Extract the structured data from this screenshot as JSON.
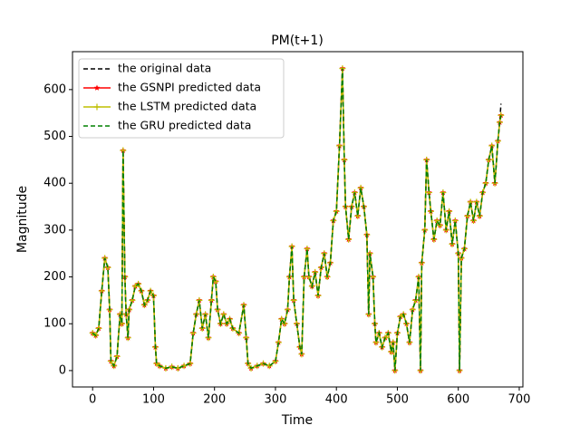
{
  "chart_data": {
    "type": "line",
    "title": "PM(t+1)",
    "x_label": "Time",
    "y_label": "Magnitude",
    "x": [
      0,
      5,
      10,
      15,
      20,
      25,
      28,
      30,
      35,
      40,
      45,
      48,
      50,
      53,
      55,
      58,
      60,
      65,
      70,
      75,
      80,
      85,
      90,
      95,
      100,
      103,
      105,
      110,
      120,
      130,
      140,
      150,
      160,
      165,
      170,
      175,
      180,
      185,
      190,
      195,
      198,
      202,
      205,
      210,
      215,
      220,
      225,
      230,
      240,
      248,
      252,
      255,
      260,
      270,
      280,
      290,
      300,
      305,
      310,
      315,
      320,
      323,
      327,
      330,
      335,
      340,
      343,
      347,
      352,
      355,
      360,
      365,
      370,
      375,
      380,
      385,
      390,
      395,
      400,
      405,
      410,
      413,
      415,
      420,
      425,
      430,
      435,
      440,
      445,
      450,
      453,
      455,
      460,
      463,
      465,
      470,
      475,
      480,
      485,
      490,
      493,
      496,
      500,
      505,
      510,
      515,
      520,
      525,
      530,
      535,
      538,
      540,
      545,
      548,
      552,
      555,
      560,
      565,
      570,
      575,
      580,
      585,
      590,
      595,
      600,
      602,
      605,
      610,
      615,
      620,
      625,
      630,
      635,
      640,
      645,
      650,
      655,
      660,
      665,
      668,
      670
    ],
    "series": [
      {
        "name": "the original data",
        "color": "#000000",
        "linestyle": "dashed",
        "marker": "none",
        "values": [
          80,
          75,
          90,
          170,
          240,
          220,
          130,
          20,
          10,
          30,
          120,
          100,
          470,
          200,
          120,
          70,
          130,
          150,
          180,
          185,
          170,
          140,
          150,
          170,
          160,
          50,
          15,
          10,
          5,
          8,
          5,
          10,
          15,
          80,
          120,
          150,
          90,
          120,
          70,
          150,
          200,
          190,
          130,
          100,
          120,
          100,
          110,
          90,
          80,
          140,
          70,
          15,
          5,
          10,
          15,
          10,
          20,
          60,
          110,
          100,
          130,
          200,
          265,
          150,
          100,
          50,
          35,
          200,
          260,
          200,
          180,
          210,
          160,
          220,
          250,
          200,
          230,
          320,
          340,
          480,
          645,
          450,
          350,
          280,
          350,
          380,
          330,
          390,
          350,
          290,
          120,
          250,
          200,
          100,
          60,
          80,
          50,
          70,
          80,
          40,
          60,
          0,
          80,
          115,
          120,
          100,
          60,
          130,
          150,
          200,
          0,
          230,
          300,
          450,
          380,
          340,
          280,
          320,
          310,
          380,
          300,
          340,
          270,
          320,
          250,
          0,
          240,
          260,
          330,
          360,
          320,
          360,
          330,
          380,
          400,
          450,
          480,
          400,
          490,
          530,
          570
        ]
      },
      {
        "name": "the GSNPI predicted data",
        "color": "#ff0000",
        "linestyle": "solid",
        "marker": "star",
        "values": [
          80,
          75,
          90,
          170,
          240,
          220,
          130,
          20,
          10,
          30,
          120,
          100,
          470,
          200,
          120,
          70,
          130,
          150,
          180,
          185,
          170,
          140,
          150,
          170,
          160,
          50,
          15,
          10,
          5,
          8,
          5,
          10,
          15,
          80,
          120,
          150,
          90,
          120,
          70,
          150,
          200,
          190,
          130,
          100,
          120,
          100,
          110,
          90,
          80,
          140,
          70,
          15,
          5,
          10,
          15,
          10,
          20,
          60,
          110,
          100,
          130,
          200,
          265,
          150,
          100,
          50,
          35,
          200,
          260,
          200,
          180,
          210,
          160,
          220,
          250,
          200,
          230,
          320,
          340,
          480,
          645,
          450,
          350,
          280,
          350,
          380,
          330,
          390,
          350,
          290,
          120,
          250,
          200,
          100,
          60,
          80,
          50,
          70,
          80,
          40,
          60,
          0,
          80,
          115,
          120,
          100,
          60,
          130,
          150,
          200,
          0,
          230,
          300,
          450,
          380,
          340,
          280,
          320,
          310,
          380,
          300,
          340,
          270,
          320,
          250,
          0,
          240,
          260,
          330,
          360,
          320,
          360,
          330,
          380,
          400,
          450,
          480,
          400,
          490,
          530,
          545
        ]
      },
      {
        "name": "the LSTM predicted data",
        "color": "#bfbf00",
        "linestyle": "solid",
        "marker": "plus",
        "values": [
          80,
          75,
          90,
          170,
          240,
          220,
          130,
          20,
          10,
          30,
          120,
          100,
          470,
          200,
          120,
          70,
          130,
          150,
          180,
          185,
          170,
          140,
          150,
          170,
          160,
          50,
          15,
          10,
          5,
          8,
          5,
          10,
          15,
          80,
          120,
          150,
          90,
          120,
          70,
          150,
          200,
          190,
          130,
          100,
          120,
          100,
          110,
          90,
          80,
          140,
          70,
          15,
          5,
          10,
          15,
          10,
          20,
          60,
          110,
          100,
          130,
          200,
          265,
          150,
          100,
          50,
          35,
          200,
          260,
          200,
          180,
          210,
          160,
          220,
          250,
          200,
          230,
          320,
          340,
          480,
          645,
          450,
          350,
          280,
          350,
          380,
          330,
          390,
          350,
          290,
          120,
          250,
          200,
          100,
          60,
          80,
          50,
          70,
          80,
          40,
          60,
          0,
          80,
          115,
          120,
          100,
          60,
          130,
          150,
          200,
          0,
          230,
          300,
          450,
          380,
          340,
          280,
          320,
          310,
          380,
          300,
          340,
          270,
          320,
          250,
          0,
          240,
          260,
          330,
          360,
          320,
          360,
          330,
          380,
          400,
          450,
          480,
          400,
          490,
          530,
          545
        ]
      },
      {
        "name": "the GRU predicted data",
        "color": "#008000",
        "linestyle": "dashed",
        "marker": "none",
        "values": [
          80,
          75,
          90,
          170,
          240,
          220,
          130,
          20,
          10,
          30,
          120,
          100,
          470,
          200,
          120,
          70,
          130,
          150,
          180,
          185,
          170,
          140,
          150,
          170,
          160,
          50,
          15,
          10,
          5,
          8,
          5,
          10,
          15,
          80,
          120,
          150,
          90,
          120,
          70,
          150,
          200,
          190,
          130,
          100,
          120,
          100,
          110,
          90,
          80,
          140,
          70,
          15,
          5,
          10,
          15,
          10,
          20,
          60,
          110,
          100,
          130,
          200,
          265,
          150,
          100,
          50,
          35,
          200,
          260,
          200,
          180,
          210,
          160,
          220,
          250,
          200,
          230,
          320,
          340,
          480,
          645,
          450,
          350,
          280,
          350,
          380,
          330,
          390,
          350,
          290,
          120,
          250,
          200,
          100,
          60,
          80,
          50,
          70,
          80,
          40,
          60,
          0,
          80,
          115,
          120,
          100,
          60,
          130,
          150,
          200,
          0,
          230,
          300,
          450,
          380,
          340,
          280,
          320,
          310,
          380,
          300,
          340,
          270,
          320,
          250,
          0,
          240,
          260,
          330,
          360,
          320,
          360,
          330,
          380,
          400,
          450,
          480,
          400,
          490,
          530,
          545
        ]
      }
    ],
    "xlim": [
      -33,
      706
    ],
    "ylim": [
      -35,
      681
    ],
    "xticks": [
      0,
      100,
      200,
      300,
      400,
      500,
      600,
      700
    ],
    "yticks": [
      0,
      100,
      200,
      300,
      400,
      500,
      600
    ],
    "legend": "upper left",
    "grid": false
  }
}
